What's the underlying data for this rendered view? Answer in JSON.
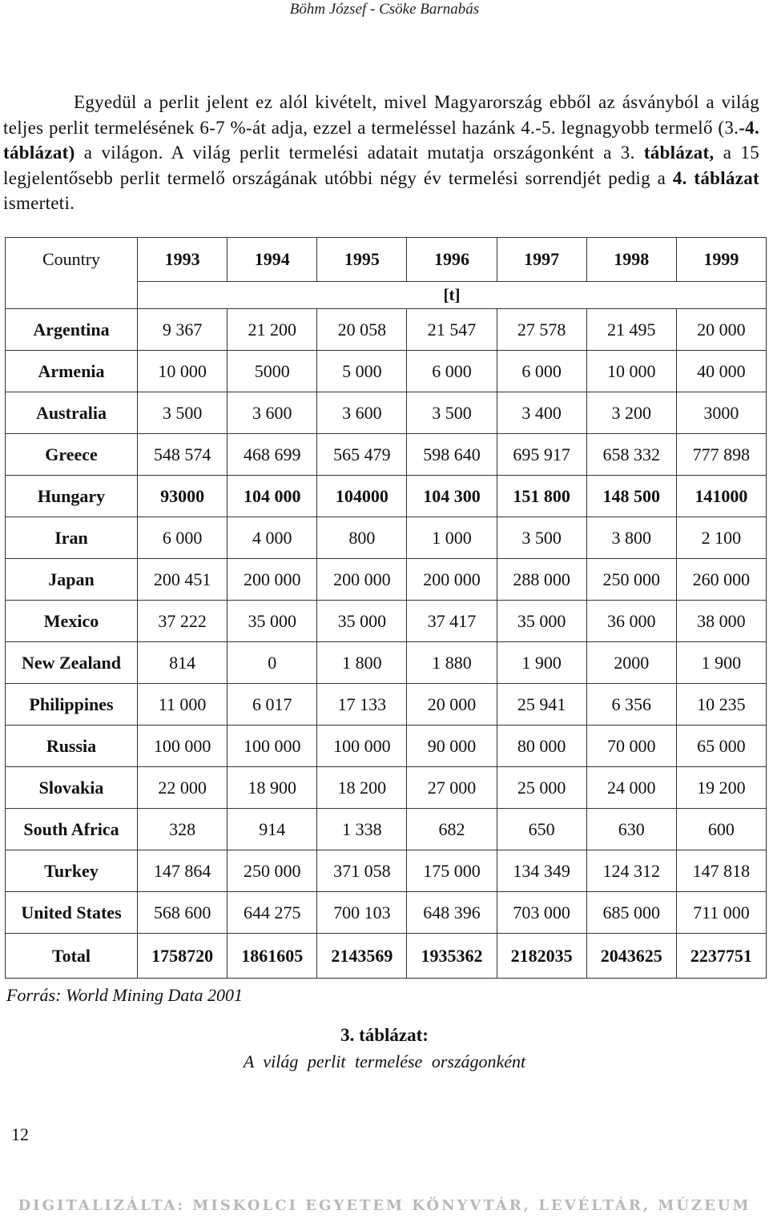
{
  "header": {
    "authors": "Böhm  József -   Csöke   Barnabás"
  },
  "paragraph": {
    "part1": "Egyedül a perlit jelent ez alól kivételt, mivel Magyarország ebből az ásványból a világ teljes perlit termelésének 6-7 %-át adja, ezzel a termeléssel hazánk 4.-5. legnagyobb termelő (3.",
    "bold1": "-4. táblázat)",
    "part2": " a világon. A világ perlit termelési adatait mutatja országonként a 3. ",
    "bold2": "táblázat,",
    "part3": " a 15 legjelentősebb perlit termelő országának utóbbi négy év termelési sorrendjét pedig a ",
    "bold3": "4. táblázat",
    "part4": " ismerteti."
  },
  "table": {
    "country_label": "Country",
    "years": [
      "1993",
      "1994",
      "1995",
      "1996",
      "1997",
      "1998",
      "1999"
    ],
    "unit": "[t]",
    "rows": [
      {
        "country": "Argentina",
        "values": [
          "9 367",
          "21 200",
          "20 058",
          "21 547",
          "27 578",
          "21 495",
          "20 000"
        ]
      },
      {
        "country": "Armenia",
        "values": [
          "10 000",
          "5000",
          "5 000",
          "6 000",
          "6 000",
          "10 000",
          "40 000"
        ]
      },
      {
        "country": "Australia",
        "values": [
          "3 500",
          "3 600",
          "3 600",
          "3 500",
          "3 400",
          "3 200",
          "3000"
        ]
      },
      {
        "country": "Greece",
        "values": [
          "548 574",
          "468 699",
          "565 479",
          "598 640",
          "695 917",
          "658 332",
          "777 898"
        ]
      },
      {
        "country": "Hungary",
        "values": [
          "93000",
          "104 000",
          "104000",
          "104 300",
          "151 800",
          "148 500",
          "141000"
        ]
      },
      {
        "country": "Iran",
        "values": [
          "6 000",
          "4 000",
          "800",
          "1 000",
          "3 500",
          "3 800",
          "2 100"
        ]
      },
      {
        "country": "Japan",
        "values": [
          "200 451",
          "200 000",
          "200 000",
          "200 000",
          "288 000",
          "250 000",
          "260 000"
        ]
      },
      {
        "country": "Mexico",
        "values": [
          "37 222",
          "35 000",
          "35 000",
          "37 417",
          "35 000",
          "36 000",
          "38 000"
        ]
      },
      {
        "country": "New Zealand",
        "values": [
          "814",
          "0",
          "1 800",
          "1 880",
          "1 900",
          "2000",
          "1 900"
        ]
      },
      {
        "country": "Philippines",
        "values": [
          "11 000",
          "6 017",
          "17 133",
          "20 000",
          "25 941",
          "6 356",
          "10 235"
        ]
      },
      {
        "country": "Russia",
        "values": [
          "100 000",
          "100 000",
          "100 000",
          "90 000",
          "80 000",
          "70 000",
          "65 000"
        ]
      },
      {
        "country": "Slovakia",
        "values": [
          "22 000",
          "18 900",
          "18 200",
          "27 000",
          "25 000",
          "24 000",
          "19 200"
        ]
      },
      {
        "country": "South Africa",
        "values": [
          "328",
          "914",
          "1 338",
          "682",
          "650",
          "630",
          "600"
        ]
      },
      {
        "country": "Turkey",
        "values": [
          "147 864",
          "250 000",
          "371 058",
          "175 000",
          "134 349",
          "124 312",
          "147 818"
        ]
      },
      {
        "country": "United States",
        "values": [
          "568 600",
          "644 275",
          "700 103",
          "648 396",
          "703 000",
          "685 000",
          "711 000"
        ]
      }
    ],
    "total": {
      "label": "Total",
      "values": [
        "1758720",
        "1861605",
        "2143569",
        "1935362",
        "2182035",
        "2043625",
        "2237751"
      ]
    }
  },
  "source": "Forrás: World Mining Data 2001",
  "caption": {
    "title": "3. táblázat:",
    "subtitle": "A   világ  perlit  termelése  országonként"
  },
  "page_number": "12",
  "footer": "DIGITALIZÁLTA: MISKOLCI EGYETEM KÖNYVTÁR, LEVÉLTÁR, MÚZEUM"
}
